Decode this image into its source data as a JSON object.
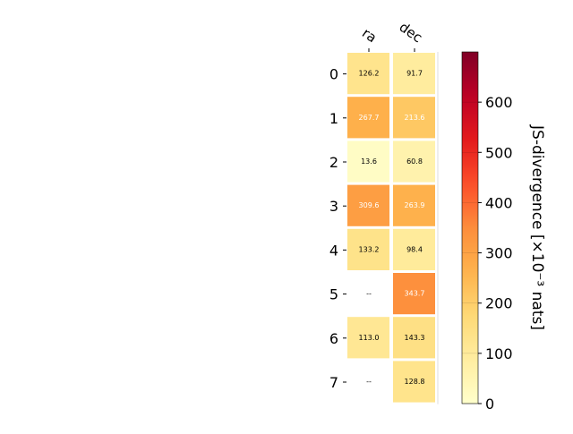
{
  "chart_data": {
    "type": "heatmap",
    "columns": [
      "ra",
      "dec"
    ],
    "rows": [
      "0",
      "1",
      "2",
      "3",
      "4",
      "5",
      "6",
      "7"
    ],
    "values": [
      [
        126.2,
        91.7
      ],
      [
        267.7,
        213.6
      ],
      [
        13.6,
        60.8
      ],
      [
        309.6,
        263.9
      ],
      [
        133.2,
        98.4
      ],
      [
        null,
        343.7
      ],
      [
        113.0,
        143.3
      ],
      [
        null,
        128.8
      ]
    ],
    "cell_labels": [
      [
        "126.2",
        "91.7"
      ],
      [
        "267.7",
        "213.6"
      ],
      [
        "13.6",
        "60.8"
      ],
      [
        "309.6",
        "263.9"
      ],
      [
        "133.2",
        "98.4"
      ],
      [
        "--",
        "343.7"
      ],
      [
        "113.0",
        "143.3"
      ],
      [
        "--",
        "128.8"
      ]
    ],
    "colorbar": {
      "label": "JS-divergence [×10⁻³ nats]",
      "ticks": [
        "0",
        "100",
        "200",
        "300",
        "400",
        "500",
        "600"
      ],
      "range": [
        0,
        700
      ],
      "colormap": "YlOrRd"
    }
  },
  "colors": {
    "missing": "#ffffff",
    "grid": "#ffffff",
    "dark_text_threshold": 200
  }
}
